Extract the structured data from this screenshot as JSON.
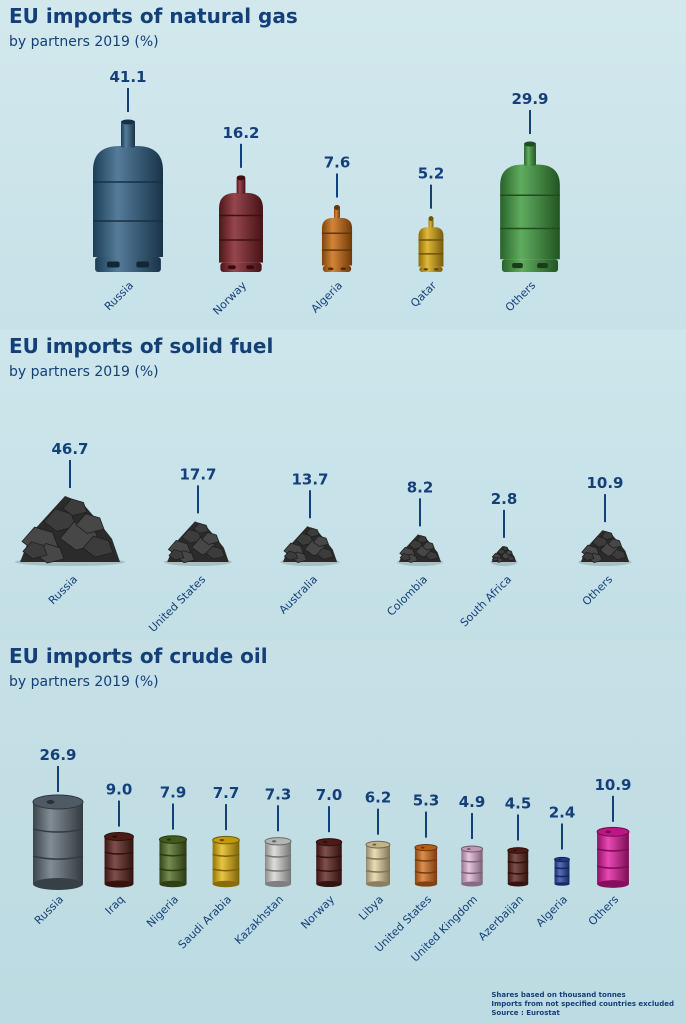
{
  "chart_data": [
    {
      "type": "bar",
      "title": "EU imports of natural gas",
      "subtitle": "by partners 2019 (%)",
      "categories": [
        "Russia",
        "Norway",
        "Algeria",
        "Qatar",
        "Others"
      ],
      "values": [
        41.1,
        16.2,
        7.6,
        5.2,
        29.9
      ],
      "value_labels": [
        "41.1",
        "16.2",
        "7.6",
        "5.2",
        "29.9"
      ],
      "colors": [
        "#2e5f85",
        "#7e1f26",
        "#c96a0c",
        "#d9a810",
        "#3d9a3c"
      ],
      "marker": "gas-cylinder"
    },
    {
      "type": "bar",
      "title": "EU imports of solid fuel",
      "subtitle": "by partners 2019 (%)",
      "categories": [
        "Russia",
        "United States",
        "Australia",
        "Colombia",
        "South Africa",
        "Others"
      ],
      "values": [
        46.7,
        17.7,
        13.7,
        8.2,
        2.8,
        10.9
      ],
      "value_labels": [
        "46.7",
        "17.7",
        "13.7",
        "8.2",
        "2.8",
        "10.9"
      ],
      "colors": [
        "#2a2a2a"
      ],
      "marker": "coal-pile"
    },
    {
      "type": "bar",
      "title": "EU imports of crude oil",
      "subtitle": "by partners 2019 (%)",
      "categories": [
        "Russia",
        "Iraq",
        "Nigeria",
        "Saudi Arabia",
        "Kazakhstan",
        "Norway",
        "Libya",
        "United States",
        "United Kingdom",
        "Azerbaijan",
        "Algeria",
        "Others"
      ],
      "values": [
        26.9,
        9.0,
        7.9,
        7.7,
        7.3,
        7.0,
        6.2,
        5.3,
        4.9,
        4.5,
        2.4,
        10.9
      ],
      "value_labels": [
        "26.9",
        "9.0",
        "7.9",
        "7.7",
        "7.3",
        "7.0",
        "6.2",
        "5.3",
        "4.9",
        "4.5",
        "2.4",
        "10.9"
      ],
      "colors": [
        "#5d6b76",
        "#5a1f1a",
        "#4f6a23",
        "#e3b40e",
        "#d4d6d2",
        "#5a1f1a",
        "#e5d2a0",
        "#d56e1c",
        "#e2b3d6",
        "#5a1f1a",
        "#2846a8",
        "#e1179c"
      ],
      "marker": "oil-barrel"
    }
  ],
  "footnotes": [
    "Shares based on thousand tonnes",
    "Imports from not specified countries excluded",
    "Source : Eurostat"
  ]
}
